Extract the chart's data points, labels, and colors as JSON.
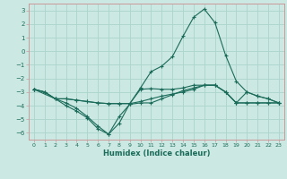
{
  "xlabel": "Humidex (Indice chaleur)",
  "background_color": "#cbe8e2",
  "grid_color": "#aad4cc",
  "line_color": "#1a6b5a",
  "spine_color": "#cc9999",
  "xlim": [
    -0.5,
    23.5
  ],
  "ylim": [
    -6.5,
    3.5
  ],
  "xticks": [
    0,
    1,
    2,
    3,
    4,
    5,
    6,
    7,
    8,
    9,
    10,
    11,
    12,
    13,
    14,
    15,
    16,
    17,
    18,
    19,
    20,
    21,
    22,
    23
  ],
  "yticks": [
    -6,
    -5,
    -4,
    -3,
    -2,
    -1,
    0,
    1,
    2,
    3
  ],
  "line1_x": [
    0,
    1,
    2,
    3,
    4,
    5,
    6,
    7,
    8,
    9,
    10,
    11,
    12,
    13,
    14,
    15,
    16,
    17,
    18,
    19,
    20,
    21,
    22,
    23
  ],
  "line1_y": [
    -2.8,
    -3.0,
    -3.5,
    -3.8,
    -4.2,
    -4.8,
    -5.5,
    -6.1,
    -5.3,
    -3.85,
    -2.7,
    -1.5,
    -1.1,
    -0.4,
    1.1,
    2.5,
    3.1,
    2.1,
    -0.3,
    -2.2,
    -3.0,
    -3.3,
    -3.5,
    -3.8
  ],
  "line2_x": [
    0,
    1,
    2,
    3,
    4,
    5,
    6,
    7,
    8,
    9,
    10,
    11,
    12,
    13,
    14,
    15,
    16,
    17,
    18,
    19,
    20,
    21,
    22,
    23
  ],
  "line2_y": [
    -2.8,
    -3.0,
    -3.5,
    -3.5,
    -3.6,
    -3.7,
    -3.8,
    -3.85,
    -3.85,
    -3.85,
    -3.7,
    -3.5,
    -3.3,
    -3.15,
    -3.0,
    -2.8,
    -2.5,
    -2.5,
    -3.0,
    -3.8,
    -3.8,
    -3.8,
    -3.8,
    -3.8
  ],
  "line3_x": [
    0,
    1,
    2,
    3,
    4,
    5,
    6,
    7,
    8,
    9,
    10,
    11,
    12,
    13,
    14,
    15,
    16,
    17,
    18,
    19,
    20,
    21,
    22,
    23
  ],
  "line3_y": [
    -2.8,
    -3.0,
    -3.5,
    -3.5,
    -3.6,
    -3.7,
    -3.8,
    -3.85,
    -3.85,
    -3.85,
    -2.8,
    -2.75,
    -2.8,
    -2.8,
    -2.7,
    -2.5,
    -2.5,
    -2.5,
    -3.0,
    -3.8,
    -3.0,
    -3.3,
    -3.5,
    -3.8
  ],
  "line4_x": [
    0,
    2,
    3,
    4,
    5,
    6,
    7,
    8,
    9,
    10,
    11,
    12,
    13,
    14,
    15,
    16,
    17,
    18,
    19,
    20,
    21,
    22,
    23
  ],
  "line4_y": [
    -2.8,
    -3.5,
    -4.0,
    -4.4,
    -4.9,
    -5.7,
    -6.1,
    -4.8,
    -3.9,
    -3.8,
    -3.8,
    -3.5,
    -3.2,
    -2.9,
    -2.7,
    -2.5,
    -2.5,
    -3.0,
    -3.8,
    -3.8,
    -3.8,
    -3.8,
    -3.8
  ]
}
